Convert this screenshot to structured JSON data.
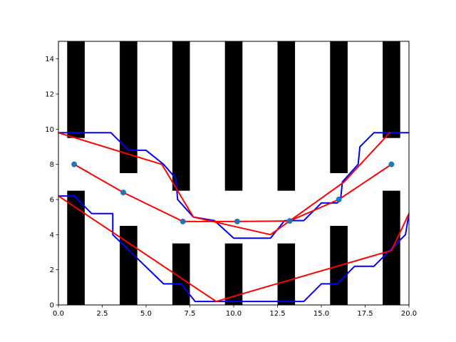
{
  "chart_data": {
    "type": "line",
    "title": "",
    "xlabel": "",
    "ylabel": "",
    "xlim": [
      0,
      20
    ],
    "ylim": [
      0,
      15
    ],
    "grid": false,
    "x_ticks": [
      0.0,
      2.5,
      5.0,
      7.5,
      10.0,
      12.5,
      15.0,
      17.5,
      20.0
    ],
    "x_tick_labels": [
      "0.0",
      "2.5",
      "5.0",
      "7.5",
      "10.0",
      "12.5",
      "15.0",
      "17.5",
      "20.0"
    ],
    "y_ticks": [
      0,
      2,
      4,
      6,
      8,
      10,
      12,
      14
    ],
    "y_tick_labels": [
      "0",
      "2",
      "4",
      "6",
      "8",
      "10",
      "12",
      "14"
    ],
    "obstacles": {
      "color": "#000000",
      "rects": [
        {
          "x": [
            0.5,
            1.5
          ],
          "y": [
            9.5,
            15.0
          ]
        },
        {
          "x": [
            0.5,
            1.5
          ],
          "y": [
            0.0,
            6.5
          ]
        },
        {
          "x": [
            3.5,
            4.5
          ],
          "y": [
            7.5,
            15.0
          ]
        },
        {
          "x": [
            3.5,
            4.5
          ],
          "y": [
            0.0,
            4.5
          ]
        },
        {
          "x": [
            6.5,
            7.5
          ],
          "y": [
            6.5,
            15.0
          ]
        },
        {
          "x": [
            6.5,
            7.5
          ],
          "y": [
            0.0,
            3.5
          ]
        },
        {
          "x": [
            9.5,
            10.5
          ],
          "y": [
            6.5,
            15.0
          ]
        },
        {
          "x": [
            9.5,
            10.5
          ],
          "y": [
            0.0,
            3.5
          ]
        },
        {
          "x": [
            12.5,
            13.5
          ],
          "y": [
            6.5,
            15.0
          ]
        },
        {
          "x": [
            12.5,
            13.5
          ],
          "y": [
            0.0,
            3.5
          ]
        },
        {
          "x": [
            15.5,
            16.5
          ],
          "y": [
            7.5,
            15.0
          ]
        },
        {
          "x": [
            15.5,
            16.5
          ],
          "y": [
            0.0,
            4.5
          ]
        },
        {
          "x": [
            18.5,
            19.5
          ],
          "y": [
            9.5,
            15.0
          ]
        },
        {
          "x": [
            18.5,
            19.5
          ],
          "y": [
            0.0,
            6.5
          ]
        }
      ]
    },
    "series": [
      {
        "type": "line",
        "color": "#0000ff",
        "x": [
          0.0,
          3.0,
          4.0,
          5.0,
          6.0,
          6.7,
          6.8,
          7.7,
          8.9,
          10.0,
          12.1,
          12.9,
          14.0,
          15.0,
          15.9,
          16.1,
          16.2,
          17.1,
          17.2,
          18.0,
          20.0
        ],
        "y": [
          9.8,
          9.8,
          8.8,
          8.8,
          8.0,
          7.2,
          6.0,
          5.0,
          4.8,
          3.8,
          3.8,
          4.8,
          4.8,
          5.8,
          5.8,
          6.0,
          7.0,
          8.0,
          9.0,
          9.8,
          9.8
        ]
      },
      {
        "type": "line",
        "color": "#0000ff",
        "x": [
          0.0,
          0.9,
          1.9,
          3.1,
          3.1,
          6.0,
          7.0,
          7.8,
          10.0,
          13.0,
          14.0,
          15.0,
          15.9,
          16.9,
          18.0,
          19.8,
          20.0
        ],
        "y": [
          6.2,
          6.2,
          5.2,
          5.2,
          4.0,
          1.2,
          1.2,
          0.2,
          0.2,
          0.2,
          0.2,
          1.2,
          1.2,
          2.2,
          2.2,
          4.0,
          5.2
        ]
      },
      {
        "type": "line",
        "color": "#ff0000",
        "x": [
          0.0,
          5.9,
          6.8,
          7.7,
          12.1,
          16.3,
          18.9
        ],
        "y": [
          9.8,
          8.0,
          6.5,
          5.0,
          4.0,
          7.0,
          9.8
        ]
      },
      {
        "type": "line",
        "color": "#ff0000",
        "x": [
          0.9,
          3.7,
          7.1,
          10.2,
          13.2,
          16.0,
          19.0
        ],
        "y": [
          8.0,
          6.4,
          4.75,
          4.75,
          4.78,
          6.0,
          8.0
        ]
      },
      {
        "type": "line",
        "color": "#ff0000",
        "x": [
          0.0,
          9.0,
          19.0,
          20.0
        ],
        "y": [
          6.2,
          0.2,
          3.1,
          5.2
        ]
      },
      {
        "type": "scatter",
        "color": "#1f77b4",
        "x": [
          0.9,
          3.7,
          7.1,
          10.2,
          13.2,
          16.0,
          19.0
        ],
        "y": [
          8.0,
          6.4,
          4.75,
          4.75,
          4.78,
          6.0,
          8.0
        ]
      }
    ]
  }
}
